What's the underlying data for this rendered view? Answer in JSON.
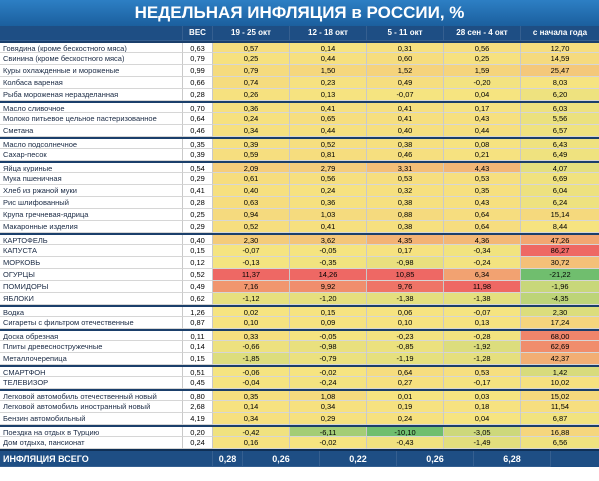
{
  "header": {
    "title": "НЕДЕЛЬНАЯ ИНФЛЯЦИЯ в РОССИИ, %"
  },
  "table": {
    "columns": [
      "ВЕС",
      "19 - 25 окт",
      "12 - 18 окт",
      "5 - 11 окт",
      "28 сен - 4 окт",
      "с начала года"
    ],
    "groups": [
      {
        "rows": [
          [
            "Говядина (кроме бескостного мяса)",
            "0,63",
            "0,57",
            "0,14",
            "0,31",
            "0,56",
            "12,70"
          ],
          [
            "Свинина (кроме бескостного мяса)",
            "0,79",
            "0,25",
            "0,44",
            "0,60",
            "0,25",
            "14,59"
          ],
          [
            "Куры охлажденные и мороженые",
            "0,99",
            "0,79",
            "1,50",
            "1,52",
            "1,59",
            "25,47"
          ],
          [
            "Колбаса вареная",
            "0,66",
            "0,74",
            "0,23",
            "0,49",
            "-0,20",
            "8,03"
          ],
          [
            "Рыба мороженая неразделанная",
            "0,28",
            "0,26",
            "0,13",
            "-0,07",
            "0,04",
            "6,20"
          ]
        ]
      },
      {
        "rows": [
          [
            "Масло сливочное",
            "0,70",
            "0,36",
            "0,41",
            "0,41",
            "0,17",
            "6,03"
          ],
          [
            "Молоко питьевое цельное пастеризованное",
            "0,64",
            "0,24",
            "0,65",
            "0,41",
            "0,43",
            "5,56"
          ],
          [
            "Сметана",
            "0,46",
            "0,34",
            "0,44",
            "0,40",
            "0,44",
            "6,57"
          ]
        ]
      },
      {
        "rows": [
          [
            "Масло подсолнечное",
            "0,35",
            "0,39",
            "0,52",
            "0,38",
            "0,08",
            "6,43"
          ],
          [
            "Сахар-песок",
            "0,39",
            "0,59",
            "0,81",
            "0,46",
            "0,21",
            "6,49"
          ]
        ]
      },
      {
        "rows": [
          [
            "Яйца куриные",
            "0,54",
            "2,09",
            "2,79",
            "3,31",
            "4,43",
            "4,07"
          ],
          [
            "Мука пшеничная",
            "0,29",
            "0,61",
            "0,56",
            "0,53",
            "0,53",
            "6,69"
          ],
          [
            "Хлеб из ржаной муки",
            "0,41",
            "0,40",
            "0,24",
            "0,32",
            "0,35",
            "6,04"
          ],
          [
            "Рис шлифованный",
            "0,28",
            "0,63",
            "0,36",
            "0,38",
            "0,43",
            "6,24"
          ],
          [
            "Крупа гречневая-ядрица",
            "0,25",
            "0,94",
            "1,03",
            "0,88",
            "0,64",
            "15,14"
          ],
          [
            "Макаронные изделия",
            "0,29",
            "0,52",
            "0,41",
            "0,38",
            "0,64",
            "8,44"
          ]
        ]
      },
      {
        "rows": [
          [
            "КАРТОФЕЛЬ",
            "0,40",
            "2,30",
            "3,62",
            "4,35",
            "4,36",
            "47,26"
          ],
          [
            "КАПУСТА",
            "0,15",
            "-0,07",
            "-0,05",
            "0,17",
            "-0,34",
            "86,27"
          ],
          [
            "МОРКОВЬ",
            "0,12",
            "-0,13",
            "-0,35",
            "-0,98",
            "-0,24",
            "30,72"
          ],
          [
            "ОГУРЦЫ",
            "0,52",
            "11,37",
            "14,26",
            "10,85",
            "6,34",
            "-21,22"
          ],
          [
            "ПОМИДОРЫ",
            "0,49",
            "7,16",
            "9,92",
            "9,76",
            "11,98",
            "-1,96"
          ],
          [
            "ЯБЛОКИ",
            "0,62",
            "-1,12",
            "-1,20",
            "-1,38",
            "-1,38",
            "-4,35"
          ]
        ]
      },
      {
        "rows": [
          [
            "Водка",
            "1,26",
            "0,02",
            "0,15",
            "0,06",
            "-0,07",
            "2,30"
          ],
          [
            "Сигареты с фильтром отечественные",
            "0,87",
            "0,10",
            "0,09",
            "0,10",
            "0,13",
            "17,24"
          ]
        ]
      },
      {
        "rows": [
          [
            "Доска обрезная",
            "0,11",
            "0,33",
            "-0,05",
            "-0,23",
            "-0,28",
            "68,00"
          ],
          [
            "Плиты древесностружечные",
            "0,14",
            "-0,66",
            "-0,98",
            "-0,85",
            "-1,92",
            "62,69"
          ],
          [
            "Металлочерепица",
            "0,15",
            "-1,85",
            "-0,79",
            "-1,19",
            "-1,28",
            "42,37"
          ]
        ]
      },
      {
        "rows": [
          [
            "СМАРТФОН",
            "0,51",
            "-0,06",
            "-0,02",
            "0,64",
            "0,53",
            "1,42"
          ],
          [
            "ТЕЛЕВИЗОР",
            "0,45",
            "-0,04",
            "-0,24",
            "0,27",
            "-0,17",
            "10,02"
          ]
        ]
      },
      {
        "rows": [
          [
            "Легковой автомобиль отечественный новый",
            "0,80",
            "0,35",
            "1,08",
            "0,01",
            "0,03",
            "15,02"
          ],
          [
            "Легковой автомобиль иностранный новый",
            "2,68",
            "0,14",
            "0,34",
            "0,19",
            "0,18",
            "11,54"
          ],
          [
            "Бензин автомобильный",
            "4,19",
            "0,34",
            "0,29",
            "0,24",
            "0,04",
            "6,87"
          ]
        ]
      },
      {
        "rows": [
          [
            "Поездка на отдых в Турцию",
            "0,20",
            "-0,42",
            "-6,11",
            "-10,10",
            "-3,05",
            "16,88"
          ],
          [
            "Дом отдыха, пансионат",
            "0,24",
            "0,16",
            "-0,02",
            "-0,43",
            "-1,49",
            "6,56"
          ]
        ]
      }
    ],
    "footer": [
      "ИНФЛЯЦИЯ ВСЕГО",
      "0,28",
      "0,26",
      "0,22",
      "0,26",
      "6,28"
    ]
  }
}
